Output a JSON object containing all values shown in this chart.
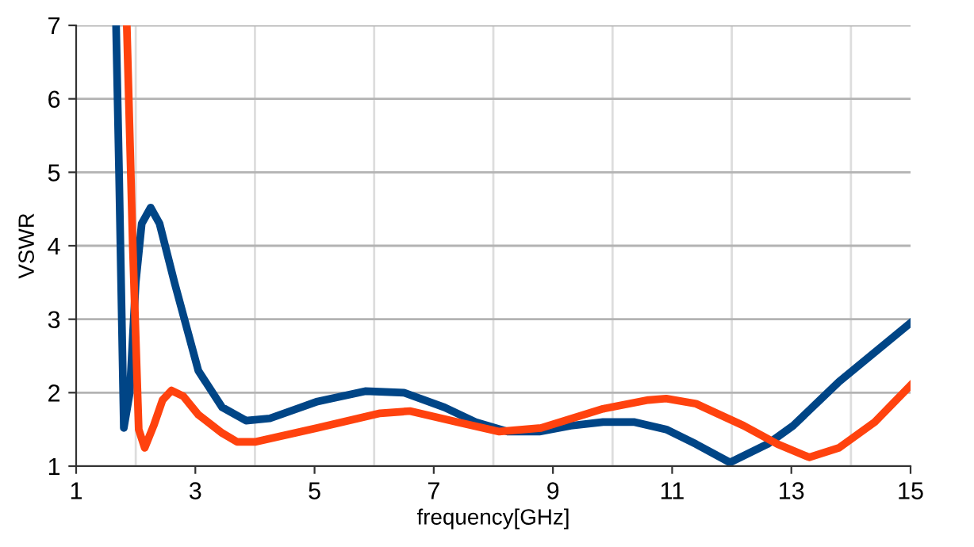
{
  "chart_data": {
    "type": "line",
    "xlabel": "frequency[GHz]",
    "ylabel": "VSWR",
    "xlim": [
      1,
      15
    ],
    "ylim": [
      1,
      7
    ],
    "xticks": [
      1,
      {
        "value": 2,
        "label": null
      },
      3,
      {
        "value": 4,
        "label": null
      },
      5,
      {
        "value": 6,
        "label": null
      },
      7,
      {
        "value": 8,
        "label": null
      },
      9,
      {
        "value": 10,
        "label": null
      },
      11,
      {
        "value": 12,
        "label": null
      },
      13,
      {
        "value": 14,
        "label": null
      },
      15
    ],
    "yticks": [
      1,
      2,
      3,
      4,
      5,
      6,
      7
    ],
    "grid": true,
    "line_style": "solid",
    "marker": "none",
    "series": [
      {
        "color": "#004586",
        "x": [
          1.67,
          1.72,
          1.8,
          1.9,
          2.0,
          2.1,
          2.25,
          2.4,
          2.65,
          3.05,
          3.45,
          3.85,
          4.25,
          5.05,
          5.85,
          6.5,
          7.18,
          7.7,
          8.24,
          8.77,
          9.3,
          9.84,
          10.37,
          10.9,
          11.4,
          11.97,
          12.6,
          13.03,
          13.8,
          15
        ],
        "values": [
          7,
          5.0,
          1.52,
          2.0,
          3.5,
          4.3,
          4.52,
          4.3,
          3.5,
          2.3,
          1.8,
          1.62,
          1.65,
          1.88,
          2.02,
          2.0,
          1.8,
          1.6,
          1.47,
          1.47,
          1.55,
          1.6,
          1.6,
          1.5,
          1.3,
          1.05,
          1.3,
          1.55,
          2.15,
          2.95
        ]
      },
      {
        "color": "#ff420e",
        "x": [
          1.85,
          1.95,
          2.05,
          2.15,
          2.3,
          2.45,
          2.6,
          2.8,
          3.05,
          3.45,
          3.7,
          4.0,
          5.05,
          6.1,
          6.6,
          7.4,
          8.1,
          8.8,
          9.84,
          10.6,
          10.9,
          11.4,
          12.2,
          12.77,
          13.3,
          13.8,
          14.4,
          15
        ],
        "values": [
          7,
          4.0,
          1.5,
          1.25,
          1.55,
          1.9,
          2.03,
          1.95,
          1.7,
          1.45,
          1.33,
          1.33,
          1.52,
          1.72,
          1.75,
          1.6,
          1.47,
          1.52,
          1.78,
          1.9,
          1.92,
          1.85,
          1.55,
          1.3,
          1.12,
          1.25,
          1.6,
          2.1
        ]
      }
    ]
  }
}
